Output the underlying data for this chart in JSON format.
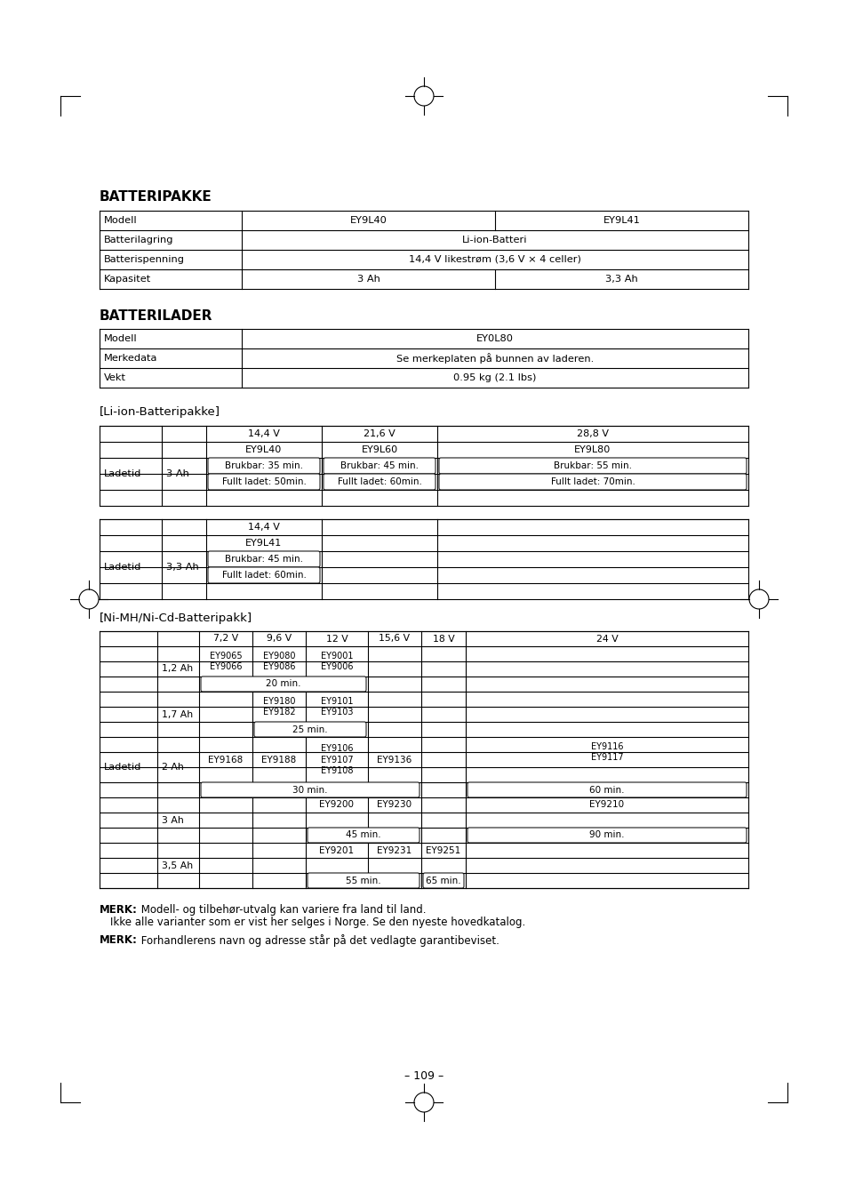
{
  "page_number": "– 109 –",
  "section1_title": "BATTERIPAKKE",
  "section2_title": "BATTERILADER",
  "section3_title": "[Li-ion-Batteripakke]",
  "section4_title": "[Ni-MH/Ni-Cd-Batteripakk]",
  "bg_color": "#ffffff",
  "text_color": "#000000"
}
